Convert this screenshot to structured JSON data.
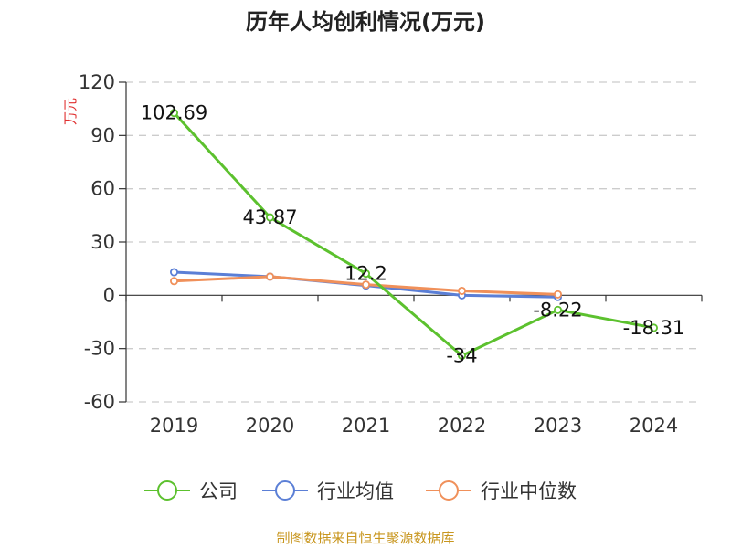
{
  "chart_data": {
    "type": "line",
    "title": "历年人均创利情况(万元)",
    "ylabel": "万元",
    "categories": [
      "2019",
      "2020",
      "2021",
      "2022",
      "2023",
      "2024"
    ],
    "ylim": [
      -60,
      120
    ],
    "yticks": [
      120,
      90,
      60,
      30,
      0,
      -30,
      -60
    ],
    "grid": true,
    "legend_position": "bottom",
    "series": [
      {
        "name": "公司",
        "color": "#5cc12e",
        "values": [
          102.69,
          43.87,
          12.2,
          -34,
          -8.22,
          -18.31
        ],
        "labels": [
          "102.69",
          "43.87",
          "12.2",
          "-34",
          "-8.22",
          "-18.31"
        ]
      },
      {
        "name": "行业均值",
        "color": "#5b7fd6",
        "values": [
          13,
          10.5,
          5.5,
          0,
          -1,
          null
        ]
      },
      {
        "name": "行业中位数",
        "color": "#f0905a",
        "values": [
          8,
          10.5,
          6,
          2.5,
          0.5,
          null
        ]
      }
    ],
    "source": "制图数据来自恒生聚源数据库"
  }
}
